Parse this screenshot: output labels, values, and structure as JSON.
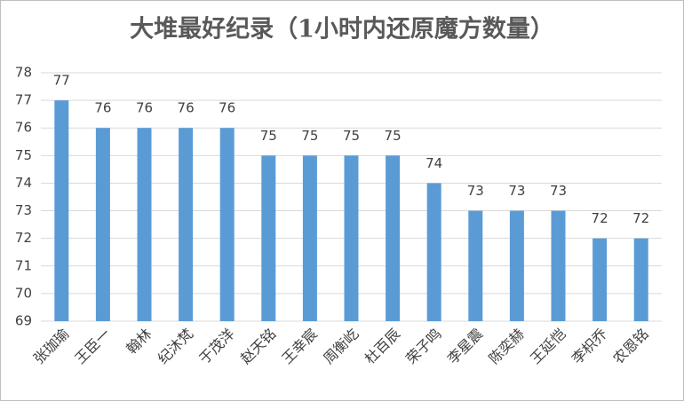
{
  "chart_data": {
    "type": "bar",
    "title": "大堆最好纪录（1小时内还原魔方数量）",
    "categories": [
      "张珈瑜",
      "王臣一",
      "翰林",
      "纪沐梵",
      "于茂洋",
      "赵天铭",
      "王幸宸",
      "周衡屹",
      "杜百辰",
      "荣子鸣",
      "李星震",
      "陈奕赫",
      "王延恺",
      "李枳乔",
      "农恩铭"
    ],
    "values": [
      77,
      76,
      76,
      76,
      76,
      75,
      75,
      75,
      75,
      74,
      73,
      73,
      73,
      72,
      72
    ],
    "color": "#5b9bd5",
    "ylim": [
      69,
      78
    ],
    "yticks": [
      69,
      70,
      71,
      72,
      73,
      74,
      75,
      76,
      77,
      78
    ],
    "grid": true
  }
}
